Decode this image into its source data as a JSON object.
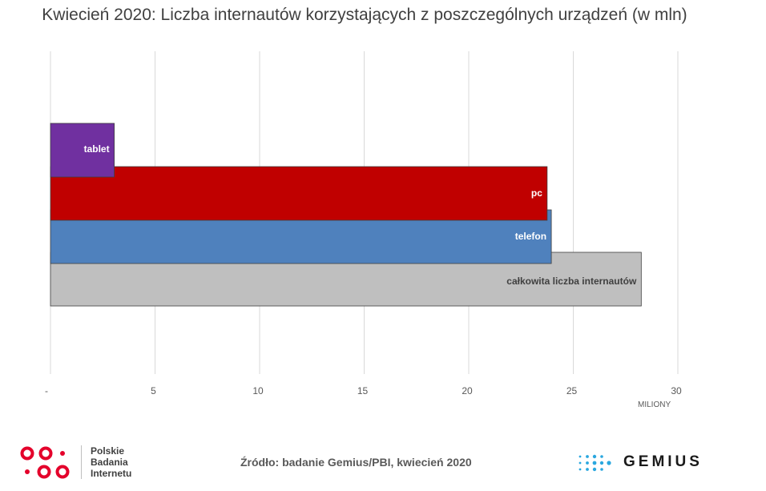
{
  "chart_data": {
    "type": "bar",
    "orientation": "horizontal",
    "title": "Kwiecień 2020: Liczba internautów korzystających z poszczególnych urządzeń (w mln)",
    "categories": [
      "tablet",
      "pc",
      "telefon",
      "całkowita liczba internautów"
    ],
    "values": [
      3.05,
      23.75,
      23.95,
      28.25
    ],
    "colors": [
      "#7030a0",
      "#c00000",
      "#4f81bd",
      "#bfbfbf"
    ],
    "label_colors": [
      "#ffffff",
      "#ffffff",
      "#ffffff",
      "#404040"
    ],
    "xlim": [
      0,
      30
    ],
    "x_ticks": [
      0,
      5,
      10,
      15,
      20,
      25,
      30
    ],
    "x_tick_labels": [
      "-",
      "5",
      "10",
      "15",
      "20",
      "25",
      "30"
    ],
    "xlabel": "MILIONY",
    "grid": true
  },
  "footer": {
    "pbi_lines": [
      "Polskie",
      "Badania",
      "Internetu"
    ],
    "source": "Źródło: badanie Gemius/PBI, kwiecień 2020",
    "gemius": "GEMIUS"
  },
  "colors": {
    "pbi_red": "#e4002b",
    "gemius_blue": "#2aa7df"
  }
}
